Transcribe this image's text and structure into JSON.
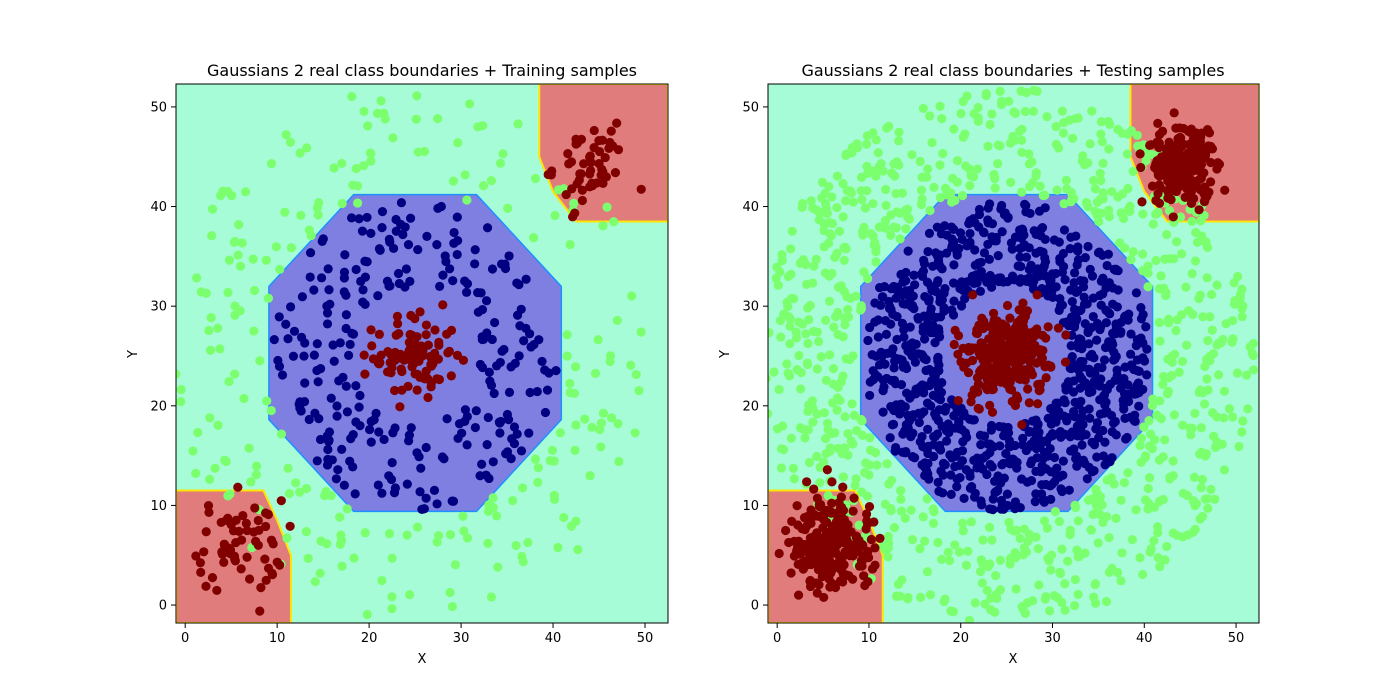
{
  "chart_data": [
    {
      "type": "scatter",
      "title": "Gaussians 2 real class boundaries + Training samples",
      "xlabel": "X",
      "ylabel": "Y",
      "xlim": [
        -1.0,
        52.5
      ],
      "ylim": [
        -1.8,
        52.3
      ],
      "xticks": [
        0,
        10,
        20,
        30,
        40,
        50
      ],
      "yticks": [
        0,
        10,
        20,
        30,
        40,
        50
      ],
      "grid": false,
      "legend": "none",
      "background_regions": [
        {
          "class": "dark-red",
          "shape": "circle",
          "center": [
            25,
            25
          ],
          "radius": 5.8
        },
        {
          "class": "navy",
          "shape": "octagon",
          "center": [
            25,
            25.3
          ],
          "half_width": 15.9
        },
        {
          "class": "dark-red",
          "shape": "corner-bottom-left",
          "limit": 11.5
        },
        {
          "class": "dark-red",
          "shape": "corner-top-right",
          "limit": 38.5
        }
      ],
      "series": [
        {
          "class": "green-outer-ring",
          "color": "#7bff6e",
          "center": [
            25,
            25
          ],
          "radius_range": [
            16.5,
            27
          ],
          "count": 220
        },
        {
          "class": "navy-ring",
          "color": "#000080",
          "center": [
            25,
            25
          ],
          "radius_range": [
            7,
            15.5
          ],
          "count": 260
        },
        {
          "class": "dark-red-center",
          "color": "#800000",
          "center": [
            25,
            25
          ],
          "spread": 2.2,
          "count": 90
        },
        {
          "class": "dark-red-bottom-left",
          "color": "#800000",
          "center": [
            6,
            6
          ],
          "spread": 2.3,
          "count": 60
        },
        {
          "class": "dark-red-top-right",
          "color": "#800000",
          "center": [
            44,
            44
          ],
          "spread": 2.0,
          "count": 50
        }
      ],
      "colors": {
        "region_red": "#e17c7c",
        "region_blue": "#7f7fe2",
        "region_green": "#a6fcd7",
        "edge_blue": "#1e90ff",
        "edge_yellow": "#ffe500"
      }
    },
    {
      "type": "scatter",
      "title": "Gaussians 2 real class boundaries + Testing samples",
      "xlabel": "X",
      "ylabel": "Y",
      "xlim": [
        -1.0,
        52.5
      ],
      "ylim": [
        -1.8,
        52.3
      ],
      "xticks": [
        0,
        10,
        20,
        30,
        40,
        50
      ],
      "yticks": [
        0,
        10,
        20,
        30,
        40,
        50
      ],
      "grid": false,
      "legend": "none",
      "background_regions": [
        {
          "class": "dark-red",
          "shape": "circle",
          "center": [
            25,
            25
          ],
          "radius": 5.8
        },
        {
          "class": "navy",
          "shape": "octagon",
          "center": [
            25,
            25.3
          ],
          "half_width": 15.9
        },
        {
          "class": "dark-red",
          "shape": "corner-bottom-left",
          "limit": 11.5
        },
        {
          "class": "dark-red",
          "shape": "corner-top-right",
          "limit": 38.5
        }
      ],
      "series": [
        {
          "class": "green-outer-ring",
          "color": "#7bff6e",
          "center": [
            25,
            25
          ],
          "radius_range": [
            16.5,
            27
          ],
          "count": 820
        },
        {
          "class": "navy-ring",
          "color": "#000080",
          "center": [
            25,
            25
          ],
          "radius_range": [
            7,
            15.5
          ],
          "count": 900
        },
        {
          "class": "dark-red-center",
          "color": "#800000",
          "center": [
            25,
            25
          ],
          "spread": 2.2,
          "count": 300
        },
        {
          "class": "dark-red-bottom-left",
          "color": "#800000",
          "center": [
            6,
            6
          ],
          "spread": 2.3,
          "count": 240
        },
        {
          "class": "dark-red-top-right",
          "color": "#800000",
          "center": [
            44,
            44
          ],
          "spread": 2.0,
          "count": 200
        }
      ],
      "colors": {
        "region_red": "#e17c7c",
        "region_blue": "#7f7fe2",
        "region_green": "#a6fcd7",
        "edge_blue": "#1e90ff",
        "edge_yellow": "#ffe500"
      }
    }
  ]
}
